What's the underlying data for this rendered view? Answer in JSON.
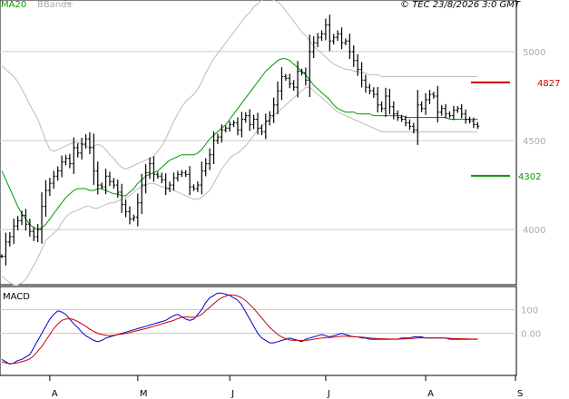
{
  "legend": {
    "ma_label": "MA20",
    "bbands_label": "BBands",
    "ma_color": "#009900",
    "bbands_color": "#bbbbbb"
  },
  "copyright": "© TEC 23/8/2026 3:0 GMT",
  "macd_label": "MACD",
  "x_ticks": [
    "A",
    "M",
    "J",
    "J",
    "A",
    "S"
  ],
  "levels": {
    "resistance": {
      "value": 4827,
      "label": "4827",
      "color": "#cc0000"
    },
    "support": {
      "value": 4302,
      "label": "4302",
      "color": "#009900"
    }
  },
  "chart_data": [
    {
      "type": "line",
      "title": "",
      "description_series": [
        "price bars",
        "MA20",
        "BBands upper",
        "BBands lower"
      ],
      "y_ticks": [
        {
          "value": 5000,
          "label": "5000"
        },
        {
          "value": 4500,
          "label": "4500"
        },
        {
          "value": 4000,
          "label": "4000"
        }
      ],
      "ylim": [
        3700,
        5280
      ],
      "x_range": [
        0,
        128
      ],
      "month_tick_positions": [
        12,
        34,
        57,
        81,
        106,
        130
      ],
      "price_close": [
        3850,
        3930,
        3960,
        4020,
        4050,
        4080,
        4030,
        3990,
        3960,
        4000,
        4130,
        4220,
        4260,
        4300,
        4330,
        4380,
        4400,
        4370,
        4460,
        4430,
        4480,
        4510,
        4460,
        4330,
        4250,
        4240,
        4300,
        4270,
        4250,
        4210,
        4140,
        4100,
        4060,
        4070,
        4150,
        4250,
        4320,
        4370,
        4310,
        4300,
        4280,
        4230,
        4250,
        4290,
        4310,
        4320,
        4310,
        4240,
        4230,
        4250,
        4330,
        4370,
        4420,
        4500,
        4520,
        4560,
        4570,
        4590,
        4600,
        4560,
        4620,
        4640,
        4590,
        4620,
        4570,
        4550,
        4610,
        4640,
        4700,
        4780,
        4860,
        4850,
        4820,
        4800,
        4890,
        4880,
        4840,
        5000,
        5050,
        5080,
        5100,
        5150,
        5060,
        5080,
        5100,
        5050,
        5060,
        5000,
        4950,
        4900,
        4840,
        4800,
        4780,
        4760,
        4700,
        4680,
        4750,
        4690,
        4650,
        4630,
        4620,
        4600,
        4580,
        4560,
        4700,
        4680,
        4730,
        4760,
        4750,
        4660,
        4680,
        4650,
        4640,
        4670,
        4680,
        4650,
        4620,
        4610,
        4590,
        4580
      ],
      "ma20": [
        4330,
        4280,
        4230,
        4180,
        4130,
        4090,
        4060,
        4030,
        4010,
        4000,
        4010,
        4030,
        4060,
        4090,
        4120,
        4150,
        4180,
        4200,
        4220,
        4230,
        4230,
        4230,
        4220,
        4220,
        4230,
        4230,
        4220,
        4210,
        4200,
        4200,
        4190,
        4190,
        4210,
        4230,
        4260,
        4280,
        4300,
        4310,
        4320,
        4330,
        4350,
        4370,
        4390,
        4400,
        4410,
        4420,
        4420,
        4420,
        4420,
        4430,
        4450,
        4480,
        4510,
        4530,
        4550,
        4570,
        4590,
        4620,
        4650,
        4680,
        4710,
        4740,
        4770,
        4800,
        4830,
        4860,
        4890,
        4910,
        4930,
        4950,
        4960,
        4960,
        4950,
        4930,
        4910,
        4890,
        4870,
        4840,
        4810,
        4790,
        4770,
        4750,
        4730,
        4700,
        4680,
        4670,
        4660,
        4660,
        4660,
        4650,
        4650,
        4650,
        4650,
        4640,
        4640,
        4640,
        4640,
        4640,
        4640,
        4640,
        4640,
        4630,
        4630,
        4630,
        4630,
        4630,
        4630,
        4630,
        4630,
        4630,
        4630,
        4630,
        4620,
        4620,
        4620,
        4620,
        4620,
        4620,
        4620,
        4620
      ],
      "bb_upper": [
        4920,
        4900,
        4880,
        4860,
        4830,
        4790,
        4750,
        4700,
        4660,
        4620,
        4560,
        4500,
        4450,
        4440,
        4450,
        4460,
        4470,
        4480,
        4490,
        4490,
        4480,
        4470,
        4460,
        4470,
        4480,
        4470,
        4450,
        4420,
        4400,
        4370,
        4350,
        4340,
        4350,
        4360,
        4370,
        4380,
        4390,
        4400,
        4410,
        4440,
        4470,
        4510,
        4560,
        4610,
        4650,
        4690,
        4720,
        4740,
        4760,
        4790,
        4830,
        4880,
        4920,
        4960,
        4990,
        5020,
        5050,
        5080,
        5110,
        5140,
        5170,
        5200,
        5220,
        5250,
        5270,
        5290,
        5300,
        5300,
        5290,
        5280,
        5260,
        5230,
        5200,
        5170,
        5140,
        5110,
        5090,
        5060,
        5030,
        5010,
        4990,
        4970,
        4950,
        4930,
        4920,
        4910,
        4900,
        4900,
        4890,
        4890,
        4880,
        4880,
        4870,
        4870,
        4870,
        4860,
        4860,
        4860,
        4860,
        4860,
        4860,
        4860,
        4860,
        4860,
        4860,
        4860,
        4860,
        4860,
        4860,
        4860,
        4860,
        4860,
        4860,
        4860,
        4860,
        4860,
        4860,
        4860,
        4860,
        4860
      ],
      "bb_lower": [
        3740,
        3720,
        3700,
        3690,
        3690,
        3700,
        3720,
        3760,
        3800,
        3840,
        3890,
        3940,
        3960,
        3980,
        4000,
        4040,
        4070,
        4090,
        4100,
        4110,
        4120,
        4130,
        4130,
        4120,
        4120,
        4130,
        4140,
        4150,
        4150,
        4160,
        4170,
        4180,
        4190,
        4210,
        4230,
        4240,
        4250,
        4260,
        4260,
        4250,
        4240,
        4240,
        4230,
        4220,
        4210,
        4200,
        4190,
        4180,
        4170,
        4170,
        4180,
        4200,
        4220,
        4260,
        4300,
        4340,
        4370,
        4400,
        4420,
        4430,
        4450,
        4470,
        4500,
        4530,
        4560,
        4580,
        4600,
        4620,
        4640,
        4660,
        4680,
        4700,
        4720,
        4740,
        4760,
        4780,
        4800,
        4800,
        4780,
        4760,
        4740,
        4720,
        4700,
        4680,
        4660,
        4650,
        4640,
        4630,
        4620,
        4610,
        4600,
        4590,
        4580,
        4570,
        4560,
        4550,
        4550,
        4550,
        4550,
        4550,
        4550,
        4550,
        4550,
        4550,
        4550,
        4550,
        4550,
        4550,
        4550,
        4550,
        4550,
        4550,
        4550,
        4550,
        4550,
        4550,
        4550,
        4550,
        4550,
        4550
      ]
    },
    {
      "type": "line",
      "title": "MACD",
      "y_ticks": [
        {
          "value": 100,
          "label": "100"
        },
        {
          "value": 0,
          "label": "0.00"
        }
      ],
      "ylim": [
        -170,
        190
      ],
      "series": [
        {
          "name": "MACD",
          "color": "#0000cc",
          "values": [
            -110,
            -120,
            -130,
            -125,
            -115,
            -110,
            -100,
            -90,
            -60,
            -30,
            0,
            30,
            60,
            80,
            95,
            90,
            80,
            60,
            40,
            25,
            5,
            -10,
            -20,
            -30,
            -35,
            -30,
            -20,
            -15,
            -10,
            -5,
            0,
            5,
            10,
            15,
            20,
            25,
            30,
            35,
            40,
            45,
            50,
            55,
            65,
            75,
            80,
            70,
            60,
            55,
            60,
            80,
            100,
            130,
            150,
            160,
            170,
            170,
            165,
            160,
            150,
            140,
            120,
            90,
            60,
            30,
            0,
            -20,
            -30,
            -40,
            -40,
            -35,
            -30,
            -25,
            -20,
            -25,
            -30,
            -35,
            -25,
            -20,
            -15,
            -10,
            -5,
            -10,
            -15,
            -10,
            -5,
            0,
            -5,
            -10,
            -15,
            -15,
            -20,
            -20,
            -25,
            -25,
            -25,
            -25,
            -25,
            -25,
            -25,
            -25,
            -20,
            -20,
            -20,
            -15,
            -15,
            -15,
            -20,
            -20,
            -20,
            -20,
            -20,
            -20,
            -25,
            -25,
            -25,
            -25,
            -25,
            -25,
            -25,
            -25
          ]
        },
        {
          "name": "Signal",
          "color": "#cc0000",
          "values": [
            -120,
            -125,
            -128,
            -127,
            -124,
            -120,
            -115,
            -108,
            -95,
            -75,
            -55,
            -30,
            -5,
            20,
            40,
            55,
            60,
            62,
            58,
            50,
            40,
            30,
            18,
            8,
            0,
            -5,
            -8,
            -10,
            -8,
            -5,
            -3,
            0,
            3,
            8,
            12,
            16,
            20,
            25,
            30,
            35,
            40,
            45,
            50,
            55,
            62,
            68,
            70,
            68,
            68,
            72,
            80,
            95,
            110,
            125,
            140,
            150,
            158,
            162,
            162,
            158,
            150,
            138,
            122,
            105,
            85,
            65,
            45,
            25,
            10,
            -5,
            -15,
            -22,
            -28,
            -30,
            -30,
            -30,
            -30,
            -28,
            -25,
            -22,
            -20,
            -18,
            -18,
            -16,
            -14,
            -12,
            -12,
            -13,
            -14,
            -15,
            -16,
            -18,
            -20,
            -21,
            -22,
            -23,
            -23,
            -24,
            -24,
            -24,
            -24,
            -23,
            -22,
            -21,
            -20,
            -19,
            -19,
            -19,
            -19,
            -19,
            -20,
            -20,
            -21,
            -22,
            -22,
            -23,
            -23,
            -24,
            -24,
            -24
          ]
        }
      ]
    }
  ]
}
